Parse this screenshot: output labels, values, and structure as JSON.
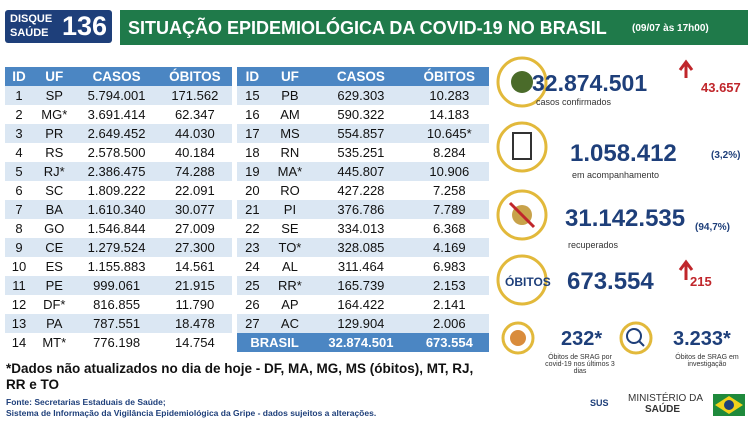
{
  "header": {
    "logo_top": "DISQUE",
    "logo_bottom": "SAÚDE",
    "logo_number": "136",
    "title": "SITUAÇÃO EPIDEMIOLÓGICA DA COVID-19 NO BRASIL",
    "date": "(09/07 às 17h00)"
  },
  "table": {
    "columns": [
      "ID",
      "UF",
      "CASOS",
      "ÓBITOS"
    ],
    "rows": [
      [
        "1",
        "SP",
        "5.794.001",
        "171.562"
      ],
      [
        "2",
        "MG*",
        "3.691.414",
        "62.347"
      ],
      [
        "3",
        "PR",
        "2.649.452",
        "44.030"
      ],
      [
        "4",
        "RS",
        "2.578.500",
        "40.184"
      ],
      [
        "5",
        "RJ*",
        "2.386.475",
        "74.288"
      ],
      [
        "6",
        "SC",
        "1.809.222",
        "22.091"
      ],
      [
        "7",
        "BA",
        "1.610.340",
        "30.077"
      ],
      [
        "8",
        "GO",
        "1.546.844",
        "27.009"
      ],
      [
        "9",
        "CE",
        "1.279.524",
        "27.300"
      ],
      [
        "10",
        "ES",
        "1.155.883",
        "14.561"
      ],
      [
        "11",
        "PE",
        "999.061",
        "21.915"
      ],
      [
        "12",
        "DF*",
        "816.855",
        "11.790"
      ],
      [
        "13",
        "PA",
        "787.551",
        "18.478"
      ],
      [
        "14",
        "MT*",
        "776.198",
        "14.754"
      ],
      [
        "15",
        "PB",
        "629.303",
        "10.283"
      ],
      [
        "16",
        "AM",
        "590.322",
        "14.183"
      ],
      [
        "17",
        "MS",
        "554.857",
        "10.645*"
      ],
      [
        "18",
        "RN",
        "535.251",
        "8.284"
      ],
      [
        "19",
        "MA*",
        "445.807",
        "10.906"
      ],
      [
        "20",
        "RO",
        "427.228",
        "7.258"
      ],
      [
        "21",
        "PI",
        "376.786",
        "7.789"
      ],
      [
        "22",
        "SE",
        "334.013",
        "6.368"
      ],
      [
        "23",
        "TO*",
        "328.085",
        "4.169"
      ],
      [
        "24",
        "AL",
        "311.464",
        "6.983"
      ],
      [
        "25",
        "RR*",
        "165.739",
        "2.153"
      ],
      [
        "26",
        "AP",
        "164.422",
        "2.141"
      ],
      [
        "27",
        "AC",
        "129.904",
        "2.006"
      ]
    ],
    "total": [
      "BRASIL",
      "32.874.501",
      "673.554"
    ]
  },
  "stats": [
    {
      "value": "32.874.501",
      "label": "casos confirmados",
      "change": "43.657"
    },
    {
      "value": "1.058.412",
      "label": "em acompanhamento",
      "percent": "(3,2%)"
    },
    {
      "value": "31.142.535",
      "label": "recuperados",
      "percent": "(94,7%)"
    },
    {
      "title": "ÓBITOS",
      "value": "673.554",
      "change": "215"
    }
  ],
  "srag": [
    {
      "value": "232*",
      "label": "Óbitos de SRAG por covid-19 nos últimos 3 dias"
    },
    {
      "value": "3.233*",
      "label": "Óbitos de SRAG em investigação"
    }
  ],
  "note": "*Dados não atualizados no dia de hoje - DF, MA, MG, MS (óbitos), MT, RJ, RR e TO",
  "sources": [
    "Fonte: Secretarias Estaduais de Saúde;",
    "Sistema de Informação da Vigilância Epidemiológica da Gripe - dados sujeitos a alterações."
  ],
  "footer": {
    "sus": "SUS",
    "ministry_top": "MINISTÉRIO DA",
    "ministry_bottom": "SAÚDE"
  }
}
